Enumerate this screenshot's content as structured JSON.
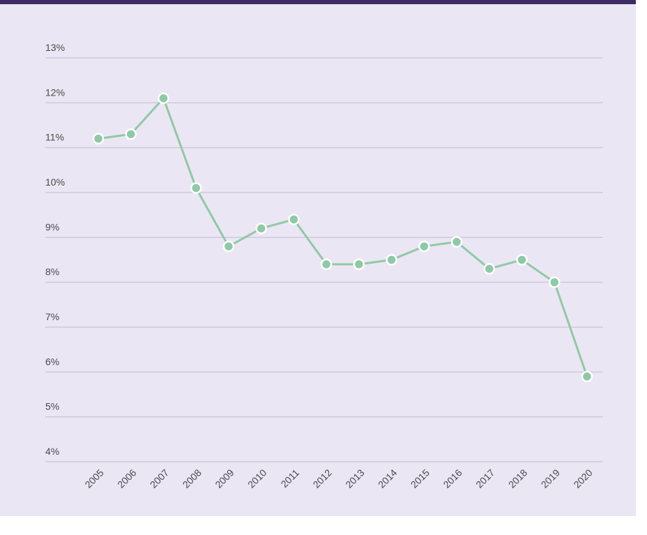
{
  "chart_data": {
    "type": "line",
    "categories": [
      "2005",
      "2006",
      "2007",
      "2008",
      "2009",
      "2010",
      "2011",
      "2012",
      "2013",
      "2014",
      "2015",
      "2016",
      "2017",
      "2018",
      "2019",
      "2020"
    ],
    "series": [
      {
        "color": "#8fc9a5",
        "values": [
          11.2,
          11.3,
          12.1,
          10.1,
          8.8,
          9.2,
          9.4,
          8.4,
          8.4,
          8.5,
          8.8,
          8.9,
          8.3,
          8.5,
          8.0,
          5.9
        ]
      }
    ],
    "ylim": [
      4,
      13
    ],
    "yticks": [
      {
        "value": 4,
        "label": "4%"
      },
      {
        "value": 5,
        "label": "5%"
      },
      {
        "value": 6,
        "label": "6%"
      },
      {
        "value": 7,
        "label": "7%"
      },
      {
        "value": 8,
        "label": "8%"
      },
      {
        "value": 9,
        "label": "9%"
      },
      {
        "value": 10,
        "label": "10%"
      },
      {
        "value": 11,
        "label": "11%"
      },
      {
        "value": 12,
        "label": "12%"
      },
      {
        "value": 13,
        "label": "13%"
      }
    ],
    "grid": true
  }
}
